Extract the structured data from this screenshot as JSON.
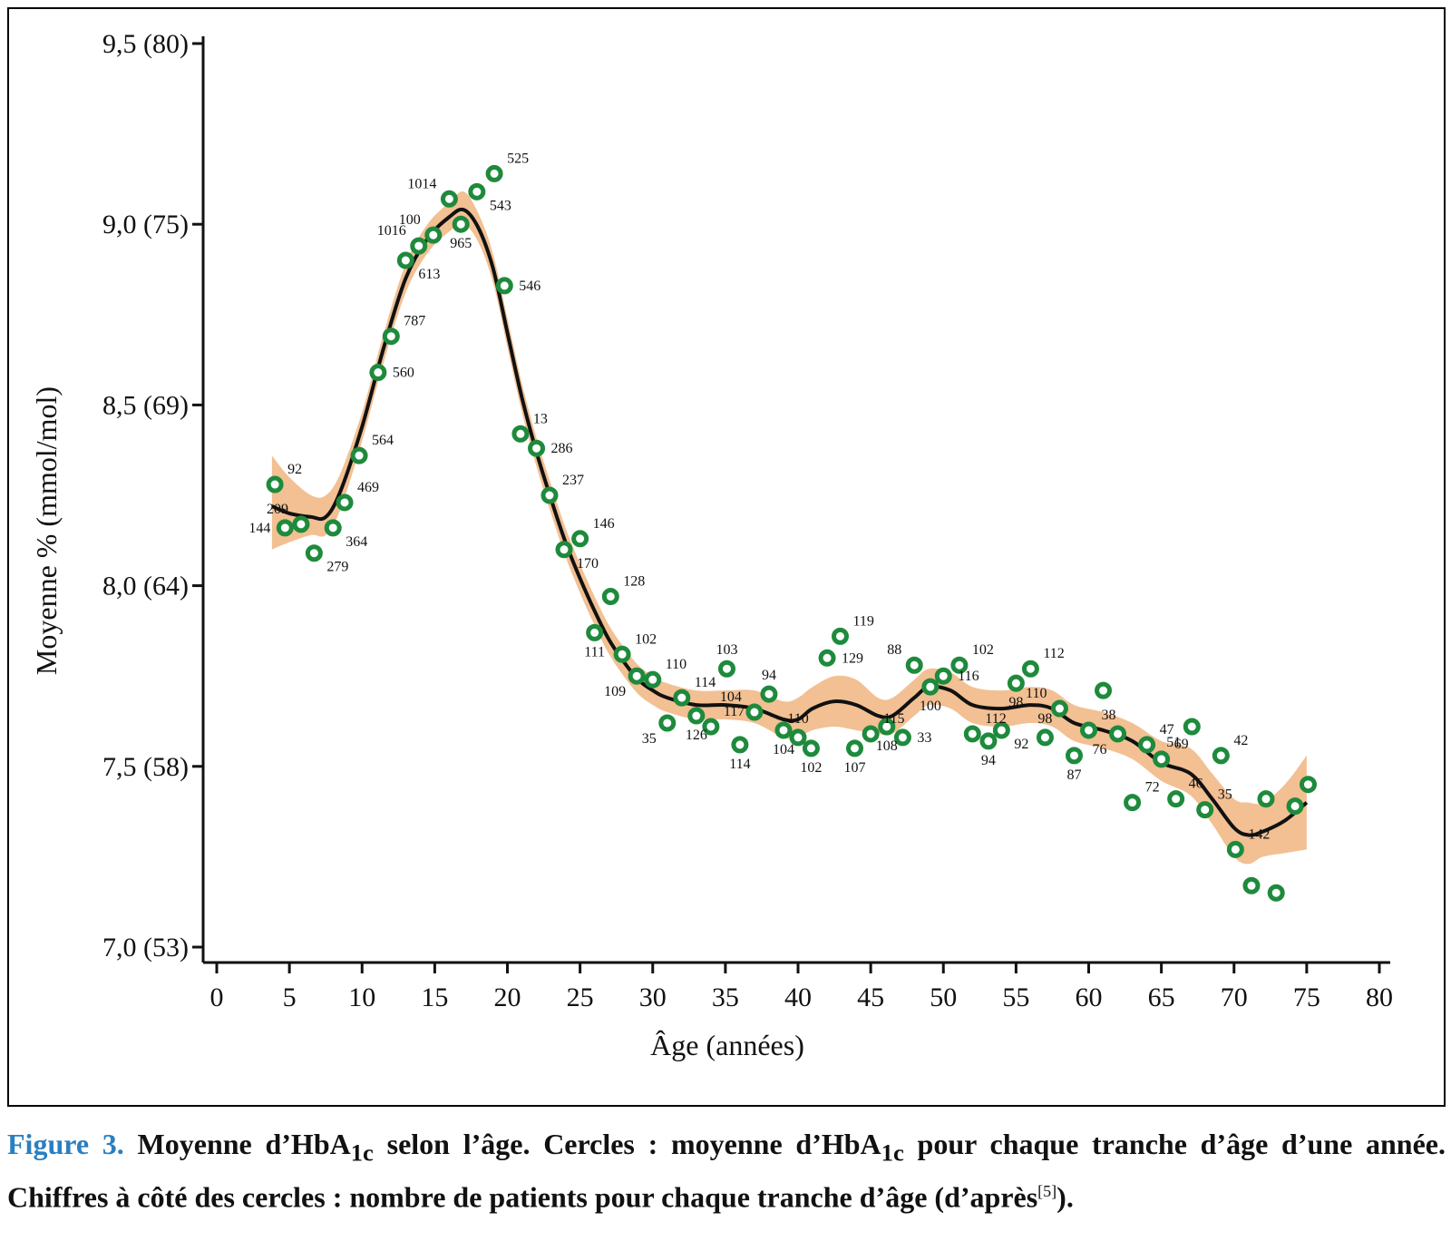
{
  "chart_data": {
    "type": "scatter",
    "xlabel": "Âge (années)",
    "ylabel": "Moyenne % (mmol/mol)",
    "xlim": [
      0,
      80
    ],
    "ylim": [
      7.0,
      9.5
    ],
    "x_ticks": [
      "0",
      "5",
      "10",
      "15",
      "20",
      "25",
      "30",
      "35",
      "40",
      "45",
      "50",
      "55",
      "60",
      "65",
      "70",
      "75",
      "80"
    ],
    "y_ticks": [
      {
        "value": 7.0,
        "label": "7,0 (53)"
      },
      {
        "value": 7.5,
        "label": "7,5 (58)"
      },
      {
        "value": 8.0,
        "label": "8,0 (64)"
      },
      {
        "value": 8.5,
        "label": "8,5 (69)"
      },
      {
        "value": 9.0,
        "label": "9,0 (75)"
      },
      {
        "value": 9.5,
        "label": "9,5 (80)"
      }
    ],
    "colors": {
      "points": "#1e8a3c",
      "band": "#f2c093",
      "curve": "#111111"
    },
    "points": [
      {
        "x": 4,
        "y": 8.28,
        "n": "92",
        "pos": "ru"
      },
      {
        "x": 4.7,
        "y": 8.16,
        "n": "144",
        "pos": "l"
      },
      {
        "x": 5.8,
        "y": 8.17,
        "n": "209",
        "pos": "lu"
      },
      {
        "x": 6.7,
        "y": 8.09,
        "n": "279",
        "pos": "rd"
      },
      {
        "x": 8,
        "y": 8.16,
        "n": "364",
        "pos": "rd"
      },
      {
        "x": 8.8,
        "y": 8.23,
        "n": "469",
        "pos": "ru"
      },
      {
        "x": 9.8,
        "y": 8.36,
        "n": "564",
        "pos": "ru"
      },
      {
        "x": 11.1,
        "y": 8.59,
        "n": "560",
        "pos": "r"
      },
      {
        "x": 12,
        "y": 8.69,
        "n": "787",
        "pos": "ru"
      },
      {
        "x": 13,
        "y": 8.9,
        "n": "613",
        "pos": "rd"
      },
      {
        "x": 13.9,
        "y": 8.94,
        "n": "1016",
        "pos": "lu"
      },
      {
        "x": 14.9,
        "y": 8.97,
        "n": "100",
        "pos": "lu"
      },
      {
        "x": 16,
        "y": 9.07,
        "n": "1014",
        "pos": "lu"
      },
      {
        "x": 16.8,
        "y": 9.0,
        "n": "965",
        "pos": "d"
      },
      {
        "x": 17.9,
        "y": 9.09,
        "n": "543",
        "pos": "rd"
      },
      {
        "x": 19.1,
        "y": 9.14,
        "n": "525",
        "pos": "ru"
      },
      {
        "x": 19.8,
        "y": 8.83,
        "n": "546",
        "pos": "r"
      },
      {
        "x": 20.9,
        "y": 8.42,
        "n": "13",
        "pos": "ru"
      },
      {
        "x": 22,
        "y": 8.38,
        "n": "286",
        "pos": "r"
      },
      {
        "x": 22.9,
        "y": 8.25,
        "n": "237",
        "pos": "ru"
      },
      {
        "x": 23.9,
        "y": 8.1,
        "n": "170",
        "pos": "rd"
      },
      {
        "x": 25,
        "y": 8.13,
        "n": "146",
        "pos": "ru"
      },
      {
        "x": 26,
        "y": 7.87,
        "n": "111",
        "pos": "d"
      },
      {
        "x": 27.1,
        "y": 7.97,
        "n": "128",
        "pos": "ru"
      },
      {
        "x": 27.9,
        "y": 7.81,
        "n": "102",
        "pos": "ru"
      },
      {
        "x": 28.9,
        "y": 7.75,
        "n": "109",
        "pos": "ld"
      },
      {
        "x": 30,
        "y": 7.74,
        "n": "110",
        "pos": "ru"
      },
      {
        "x": 31,
        "y": 7.62,
        "n": "35",
        "pos": "ld"
      },
      {
        "x": 32,
        "y": 7.69,
        "n": "114",
        "pos": "ru"
      },
      {
        "x": 33,
        "y": 7.64,
        "n": "126",
        "pos": "d"
      },
      {
        "x": 34,
        "y": 7.61,
        "n": "117",
        "pos": "ru"
      },
      {
        "x": 35.1,
        "y": 7.77,
        "n": "103",
        "pos": "u"
      },
      {
        "x": 36,
        "y": 7.56,
        "n": "114",
        "pos": "d"
      },
      {
        "x": 37,
        "y": 7.65,
        "n": "104",
        "pos": "lu"
      },
      {
        "x": 38,
        "y": 7.7,
        "n": "94",
        "pos": "u"
      },
      {
        "x": 39,
        "y": 7.6,
        "n": "104",
        "pos": "d"
      },
      {
        "x": 40,
        "y": 7.58,
        "n": "110",
        "pos": "u"
      },
      {
        "x": 40.9,
        "y": 7.55,
        "n": "102",
        "pos": "d"
      },
      {
        "x": 42,
        "y": 7.8,
        "n": "129",
        "pos": "r"
      },
      {
        "x": 42.9,
        "y": 7.86,
        "n": "119",
        "pos": "ru"
      },
      {
        "x": 43.9,
        "y": 7.55,
        "n": "107",
        "pos": "d"
      },
      {
        "x": 45,
        "y": 7.59,
        "n": "115",
        "pos": "ru"
      },
      {
        "x": 46.1,
        "y": 7.61,
        "n": "108",
        "pos": "d"
      },
      {
        "x": 47.2,
        "y": 7.58,
        "n": "33",
        "pos": "r"
      },
      {
        "x": 48,
        "y": 7.78,
        "n": "88",
        "pos": "lu"
      },
      {
        "x": 49.1,
        "y": 7.72,
        "n": "100",
        "pos": "d"
      },
      {
        "x": 50,
        "y": 7.75,
        "n": "116",
        "pos": "r"
      },
      {
        "x": 51.1,
        "y": 7.78,
        "n": "102",
        "pos": "ru"
      },
      {
        "x": 52,
        "y": 7.59,
        "n": "112",
        "pos": "ru"
      },
      {
        "x": 53.1,
        "y": 7.57,
        "n": "94",
        "pos": "d"
      },
      {
        "x": 54,
        "y": 7.6,
        "n": "92",
        "pos": "rd"
      },
      {
        "x": 55,
        "y": 7.73,
        "n": "98",
        "pos": "d"
      },
      {
        "x": 56,
        "y": 7.77,
        "n": "112",
        "pos": "ru"
      },
      {
        "x": 57,
        "y": 7.58,
        "n": "98",
        "pos": "u"
      },
      {
        "x": 58,
        "y": 7.66,
        "n": "110",
        "pos": "lu"
      },
      {
        "x": 59,
        "y": 7.53,
        "n": "87",
        "pos": "d"
      },
      {
        "x": 60,
        "y": 7.6,
        "n": "38",
        "pos": "ru"
      },
      {
        "x": 62,
        "y": 7.59,
        "n": "76",
        "pos": "ld"
      },
      {
        "x": 63,
        "y": 7.4,
        "n": "72",
        "pos": "ru"
      },
      {
        "x": 64,
        "y": 7.56,
        "n": "47",
        "pos": "ru"
      },
      {
        "x": 65,
        "y": 7.52,
        "n": "69",
        "pos": "ru"
      },
      {
        "x": 66,
        "y": 7.41,
        "n": "46",
        "pos": "ru"
      },
      {
        "x": 67.1,
        "y": 7.61,
        "n": "51",
        "pos": "ld"
      },
      {
        "x": 68,
        "y": 7.38,
        "n": "35",
        "pos": "ru"
      },
      {
        "x": 69.1,
        "y": 7.53,
        "n": "42",
        "pos": "ru"
      },
      {
        "x": 70.1,
        "y": 7.27,
        "n": "142",
        "pos": "ru"
      },
      {
        "x": 71.2,
        "y": 7.17,
        "n": "",
        "pos": "r"
      },
      {
        "x": 72.2,
        "y": 7.41,
        "n": "",
        "pos": "r"
      },
      {
        "x": 72.9,
        "y": 7.15,
        "n": "",
        "pos": "r"
      },
      {
        "x": 74.2,
        "y": 7.39,
        "n": "",
        "pos": "r"
      },
      {
        "x": 75.1,
        "y": 7.45,
        "n": "",
        "pos": "r"
      },
      {
        "x": 61,
        "y": 7.71,
        "n": "",
        "pos": "r"
      }
    ],
    "curve": [
      {
        "x": 3.8,
        "y": 8.22,
        "lo": 8.1,
        "hi": 8.36
      },
      {
        "x": 5,
        "y": 8.2,
        "lo": 8.12,
        "hi": 8.3
      },
      {
        "x": 6.5,
        "y": 8.19,
        "lo": 8.14,
        "hi": 8.25
      },
      {
        "x": 7.5,
        "y": 8.19,
        "lo": 8.14,
        "hi": 8.25
      },
      {
        "x": 8.5,
        "y": 8.26,
        "lo": 8.21,
        "hi": 8.31
      },
      {
        "x": 10,
        "y": 8.44,
        "lo": 8.4,
        "hi": 8.48
      },
      {
        "x": 11.5,
        "y": 8.66,
        "lo": 8.62,
        "hi": 8.7
      },
      {
        "x": 13,
        "y": 8.85,
        "lo": 8.81,
        "hi": 8.89
      },
      {
        "x": 14.5,
        "y": 8.96,
        "lo": 8.92,
        "hi": 9.0
      },
      {
        "x": 16,
        "y": 9.02,
        "lo": 8.98,
        "hi": 9.06
      },
      {
        "x": 17,
        "y": 9.04,
        "lo": 9.0,
        "hi": 9.09
      },
      {
        "x": 18,
        "y": 8.99,
        "lo": 8.95,
        "hi": 9.03
      },
      {
        "x": 19,
        "y": 8.88,
        "lo": 8.84,
        "hi": 8.92
      },
      {
        "x": 20,
        "y": 8.7,
        "lo": 8.66,
        "hi": 8.74
      },
      {
        "x": 21,
        "y": 8.52,
        "lo": 8.48,
        "hi": 8.56
      },
      {
        "x": 22,
        "y": 8.37,
        "lo": 8.33,
        "hi": 8.41
      },
      {
        "x": 23,
        "y": 8.24,
        "lo": 8.2,
        "hi": 8.28
      },
      {
        "x": 24,
        "y": 8.12,
        "lo": 8.08,
        "hi": 8.16
      },
      {
        "x": 25,
        "y": 8.02,
        "lo": 7.98,
        "hi": 8.06
      },
      {
        "x": 26,
        "y": 7.93,
        "lo": 7.89,
        "hi": 7.97
      },
      {
        "x": 27,
        "y": 7.85,
        "lo": 7.81,
        "hi": 7.89
      },
      {
        "x": 28,
        "y": 7.79,
        "lo": 7.75,
        "hi": 7.83
      },
      {
        "x": 29,
        "y": 7.74,
        "lo": 7.7,
        "hi": 7.78
      },
      {
        "x": 30,
        "y": 7.71,
        "lo": 7.67,
        "hi": 7.75
      },
      {
        "x": 31,
        "y": 7.69,
        "lo": 7.65,
        "hi": 7.73
      },
      {
        "x": 33,
        "y": 7.67,
        "lo": 7.63,
        "hi": 7.71
      },
      {
        "x": 35,
        "y": 7.67,
        "lo": 7.63,
        "hi": 7.71
      },
      {
        "x": 37,
        "y": 7.66,
        "lo": 7.62,
        "hi": 7.71
      },
      {
        "x": 39,
        "y": 7.63,
        "lo": 7.58,
        "hi": 7.68
      },
      {
        "x": 40,
        "y": 7.63,
        "lo": 7.58,
        "hi": 7.69
      },
      {
        "x": 41,
        "y": 7.66,
        "lo": 7.6,
        "hi": 7.72
      },
      {
        "x": 42.5,
        "y": 7.68,
        "lo": 7.61,
        "hi": 7.75
      },
      {
        "x": 44,
        "y": 7.67,
        "lo": 7.6,
        "hi": 7.74
      },
      {
        "x": 45.5,
        "y": 7.64,
        "lo": 7.59,
        "hi": 7.69
      },
      {
        "x": 46.5,
        "y": 7.64,
        "lo": 7.59,
        "hi": 7.69
      },
      {
        "x": 48,
        "y": 7.69,
        "lo": 7.64,
        "hi": 7.74
      },
      {
        "x": 49,
        "y": 7.72,
        "lo": 7.67,
        "hi": 7.77
      },
      {
        "x": 50.5,
        "y": 7.71,
        "lo": 7.66,
        "hi": 7.76
      },
      {
        "x": 52,
        "y": 7.67,
        "lo": 7.62,
        "hi": 7.72
      },
      {
        "x": 54,
        "y": 7.66,
        "lo": 7.61,
        "hi": 7.71
      },
      {
        "x": 56,
        "y": 7.67,
        "lo": 7.62,
        "hi": 7.72
      },
      {
        "x": 57.5,
        "y": 7.66,
        "lo": 7.61,
        "hi": 7.71
      },
      {
        "x": 59,
        "y": 7.62,
        "lo": 7.57,
        "hi": 7.67
      },
      {
        "x": 61,
        "y": 7.6,
        "lo": 7.55,
        "hi": 7.65
      },
      {
        "x": 63,
        "y": 7.57,
        "lo": 7.52,
        "hi": 7.62
      },
      {
        "x": 65,
        "y": 7.51,
        "lo": 7.46,
        "hi": 7.57
      },
      {
        "x": 67,
        "y": 7.48,
        "lo": 7.42,
        "hi": 7.55
      },
      {
        "x": 68.5,
        "y": 7.41,
        "lo": 7.34,
        "hi": 7.48
      },
      {
        "x": 70,
        "y": 7.33,
        "lo": 7.25,
        "hi": 7.41
      },
      {
        "x": 71,
        "y": 7.31,
        "lo": 7.23,
        "hi": 7.4
      },
      {
        "x": 72,
        "y": 7.32,
        "lo": 7.25,
        "hi": 7.4
      },
      {
        "x": 73.5,
        "y": 7.35,
        "lo": 7.26,
        "hi": 7.45
      },
      {
        "x": 75,
        "y": 7.4,
        "lo": 7.27,
        "hi": 7.53
      }
    ]
  },
  "caption": {
    "figure_number": "Figure 3.",
    "text_1": " Moyenne d’HbA",
    "sub_1": "1c",
    "text_2": " selon l’âge. Cercles : moyenne d’HbA",
    "sub_2": "1c",
    "text_3": " pour chaque tranche d’âge d’une année. Chiffres à côté des cercles : nombre de patients pour chaque tranche d’âge (d’après",
    "ref": "[5]",
    "text_4": ")."
  }
}
